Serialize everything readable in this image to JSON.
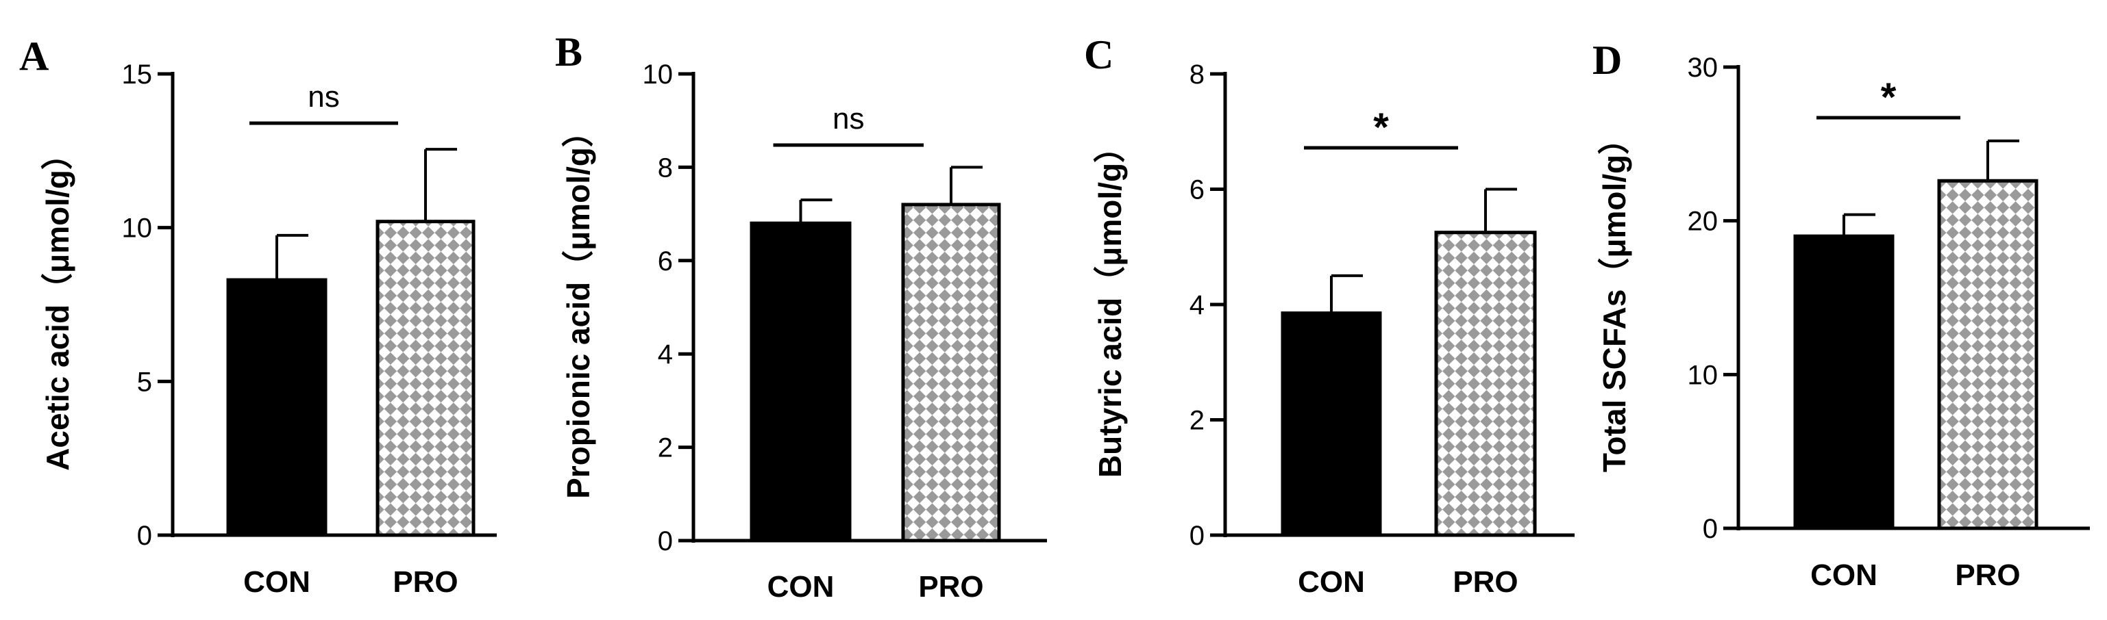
{
  "chart_data": [
    {
      "panel": "A",
      "type": "bar",
      "categories": [
        "CON",
        "PRO"
      ],
      "values": [
        8.3,
        10.2
      ],
      "errors": [
        1.45,
        2.35
      ],
      "ylabel": "Acetic acid（μmol/g）",
      "ylim": [
        0,
        15
      ],
      "yticks": [
        0,
        5,
        10,
        15
      ],
      "significance": "ns",
      "fills": [
        "solid",
        "checker"
      ]
    },
    {
      "panel": "B",
      "type": "bar",
      "categories": [
        "CON",
        "PRO"
      ],
      "values": [
        6.8,
        7.2
      ],
      "errors": [
        0.5,
        0.8
      ],
      "ylabel": "Propionic acid（μmol/g）",
      "ylim": [
        0,
        10
      ],
      "yticks": [
        0,
        2,
        4,
        6,
        8,
        10
      ],
      "significance": "ns",
      "fills": [
        "solid",
        "checker"
      ]
    },
    {
      "panel": "C",
      "type": "bar",
      "categories": [
        "CON",
        "PRO"
      ],
      "values": [
        3.85,
        5.25
      ],
      "errors": [
        0.65,
        0.75
      ],
      "ylabel": "Butyric acid（μmol/g）",
      "ylim": [
        0,
        8
      ],
      "yticks": [
        0,
        2,
        4,
        6,
        8
      ],
      "significance": "*",
      "fills": [
        "solid",
        "checker"
      ]
    },
    {
      "panel": "D",
      "type": "bar",
      "categories": [
        "CON",
        "PRO"
      ],
      "values": [
        19.0,
        22.6
      ],
      "errors": [
        1.4,
        2.6
      ],
      "ylabel": "Total SCFAs（μmol/g）",
      "ylim": [
        0,
        30
      ],
      "yticks": [
        0,
        10,
        20,
        30
      ],
      "significance": "*",
      "fills": [
        "solid",
        "checker"
      ]
    }
  ],
  "colors": {
    "ink": "#000000",
    "checker_light": "#ffffff",
    "checker_dark": "#9a9a9a"
  }
}
